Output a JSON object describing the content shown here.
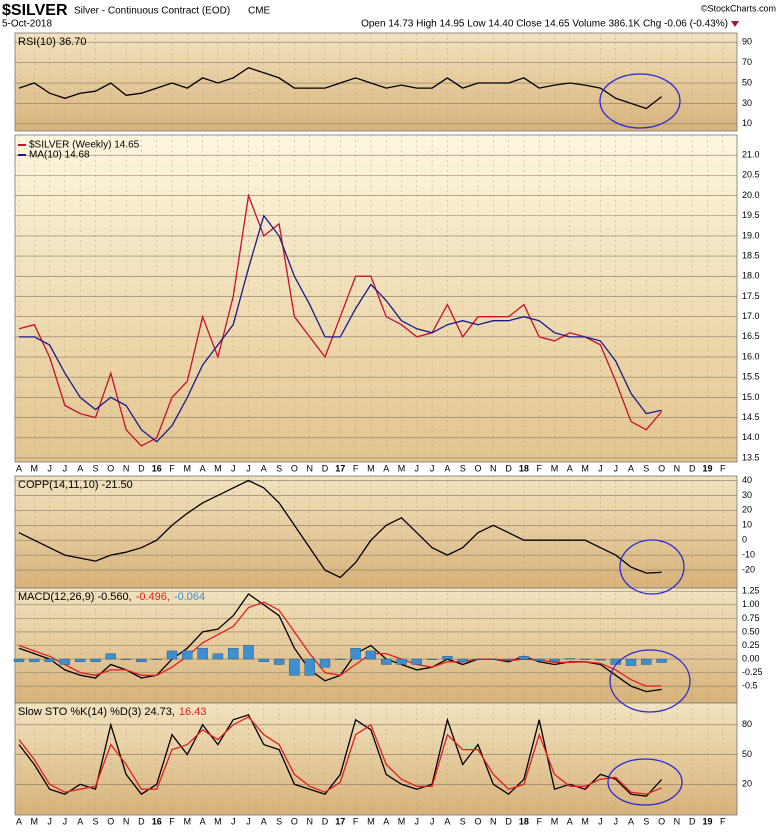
{
  "header": {
    "symbol": "$SILVER",
    "name": "Silver - Continuous Contract (EOD)",
    "exchange": "CME",
    "date": "5-Oct-2018",
    "quote": "Open 14.73  High 14.95  Low 14.40  Close 14.65  Volume 386.1K  Chg -0.06 (-0.43%)",
    "credit": "©StockCharts.com"
  },
  "chart_data": [
    {
      "type": "line",
      "ylim": [
        3,
        99
      ],
      "yticks": [
        10,
        30,
        50,
        70,
        90
      ],
      "grid": true,
      "legend_layout": "inline",
      "series": [
        {
          "name": "RSI(10) 36.70",
          "color": "#000000",
          "values": [
            45,
            50,
            40,
            35,
            40,
            42,
            50,
            38,
            40,
            45,
            50,
            45,
            55,
            50,
            55,
            65,
            60,
            55,
            45,
            45,
            45,
            50,
            55,
            50,
            45,
            48,
            45,
            45,
            55,
            45,
            50,
            50,
            50,
            55,
            45,
            48,
            50,
            48,
            45,
            35,
            30,
            25,
            36.7,
            null,
            null,
            null,
            null
          ]
        }
      ]
    },
    {
      "type": "line",
      "ylim": [
        13.4,
        21.5
      ],
      "grid": true,
      "legend_layout": "stacked",
      "yticks": [
        13.5,
        {
          "value": 14,
          "label": "14.0"
        },
        14.5,
        {
          "value": 15,
          "label": "15.0"
        },
        15.5,
        {
          "value": 16,
          "label": "16.0"
        },
        16.5,
        {
          "value": 17,
          "label": "17.0"
        },
        17.5,
        {
          "value": 18,
          "label": "18.0"
        },
        18.5,
        {
          "value": 19,
          "label": "19.0"
        },
        19.5,
        {
          "value": 20,
          "label": "20.0"
        },
        20.5,
        {
          "value": 21,
          "label": "21.0"
        }
      ],
      "categories": [
        "A",
        "M",
        "J",
        "J",
        "A",
        "S",
        "O",
        "N",
        "D",
        "16",
        "F",
        "M",
        "A",
        "M",
        "J",
        "J",
        "A",
        "S",
        "O",
        "N",
        "D",
        "17",
        "F",
        "M",
        "A",
        "M",
        "J",
        "J",
        "A",
        "S",
        "O",
        "N",
        "D",
        "18",
        "F",
        "M",
        "A",
        "M",
        "J",
        "J",
        "A",
        "S",
        "O",
        "N",
        "D",
        "19",
        "F"
      ],
      "series": [
        {
          "name": "$SILVER (Weekly) 14.65",
          "color": "#c8102e",
          "values": [
            16.7,
            16.8,
            16.0,
            14.8,
            14.6,
            14.5,
            15.6,
            14.2,
            13.8,
            14.0,
            15.0,
            15.4,
            17.0,
            16.0,
            17.5,
            20.0,
            19.0,
            19.3,
            17.0,
            16.5,
            16.0,
            17.0,
            18.0,
            18.0,
            17.0,
            16.8,
            16.5,
            16.6,
            17.3,
            16.5,
            17.0,
            17.0,
            17.0,
            17.3,
            16.5,
            16.4,
            16.6,
            16.5,
            16.3,
            15.4,
            14.4,
            14.2,
            14.65,
            null,
            null,
            null,
            null
          ]
        },
        {
          "name": "MA(10) 14.68",
          "color": "#1a1a8c",
          "values": [
            16.5,
            16.5,
            16.3,
            15.6,
            15.0,
            14.7,
            15.0,
            14.8,
            14.2,
            13.9,
            14.3,
            15.0,
            15.8,
            16.3,
            16.8,
            18.2,
            19.5,
            19.0,
            18.0,
            17.3,
            16.5,
            16.5,
            17.2,
            17.8,
            17.4,
            16.9,
            16.7,
            16.6,
            16.8,
            16.9,
            16.8,
            16.9,
            16.9,
            17.0,
            16.9,
            16.6,
            16.5,
            16.5,
            16.4,
            15.9,
            15.1,
            14.6,
            14.68,
            null,
            null,
            null,
            null
          ]
        }
      ]
    },
    {
      "type": "line",
      "ylim": [
        -32,
        43
      ],
      "yticks": [
        -20,
        -10,
        0,
        10,
        20,
        30,
        40
      ],
      "grid": true,
      "legend_layout": "inline",
      "series": [
        {
          "name": "COPP(14,11,10) -21.50",
          "color": "#000000",
          "values": [
            5,
            0,
            -5,
            -10,
            -12,
            -14,
            -10,
            -8,
            -5,
            0,
            10,
            18,
            25,
            30,
            35,
            40,
            35,
            25,
            10,
            -5,
            -20,
            -25,
            -15,
            0,
            10,
            15,
            5,
            -5,
            -10,
            -5,
            5,
            10,
            5,
            0,
            0,
            0,
            0,
            0,
            -5,
            -10,
            -18,
            -22,
            -21.5,
            null,
            null,
            null,
            null
          ]
        }
      ]
    },
    {
      "type": "line",
      "ylim": [
        -0.81,
        1.31
      ],
      "grid": true,
      "legend_layout": "inline",
      "yticks": [
        -0.5,
        -0.25,
        {
          "value": 0,
          "label": "0.00"
        },
        0.25,
        {
          "value": 0.5,
          "label": "0.50"
        },
        0.75,
        {
          "value": 1,
          "label": "1.00"
        },
        1.25
      ],
      "series": [
        {
          "name": "MACD(12,26,9) -0.560,",
          "color": "#000000",
          "values": [
            0.2,
            0.1,
            0.0,
            -0.2,
            -0.3,
            -0.35,
            -0.1,
            -0.2,
            -0.35,
            -0.3,
            0.0,
            0.2,
            0.5,
            0.55,
            0.8,
            1.2,
            1.0,
            0.8,
            0.2,
            -0.2,
            -0.4,
            -0.3,
            0.1,
            0.25,
            0.0,
            -0.1,
            -0.2,
            -0.15,
            0.0,
            -0.1,
            0.0,
            0.0,
            -0.05,
            0.05,
            -0.05,
            -0.1,
            -0.05,
            -0.05,
            -0.1,
            -0.3,
            -0.5,
            -0.6,
            -0.56,
            null,
            null,
            null,
            null
          ]
        },
        {
          "name": "-0.496,",
          "color": "#e02020",
          "values": [
            0.25,
            0.15,
            0.05,
            -0.1,
            -0.25,
            -0.3,
            -0.2,
            -0.2,
            -0.3,
            -0.3,
            -0.15,
            0.05,
            0.3,
            0.45,
            0.6,
            0.95,
            1.05,
            0.9,
            0.5,
            0.1,
            -0.25,
            -0.3,
            -0.1,
            0.1,
            0.1,
            0.0,
            -0.1,
            -0.15,
            -0.05,
            -0.05,
            0.0,
            0.0,
            -0.03,
            0.0,
            -0.02,
            -0.06,
            -0.06,
            -0.05,
            -0.08,
            -0.2,
            -0.38,
            -0.5,
            -0.496,
            null,
            null,
            null,
            null
          ]
        },
        {
          "name": "-0.064",
          "color": "#3d8fd0",
          "type": "bar",
          "values": [
            -0.05,
            -0.05,
            -0.05,
            -0.1,
            -0.05,
            -0.05,
            0.1,
            0,
            -0.05,
            0,
            0.15,
            0.15,
            0.2,
            0.1,
            0.2,
            0.25,
            -0.05,
            -0.1,
            -0.3,
            -0.3,
            -0.15,
            0,
            0.2,
            0.15,
            -0.1,
            -0.1,
            -0.1,
            0,
            0.05,
            -0.05,
            0,
            0,
            -0.02,
            0.05,
            -0.03,
            -0.04,
            0.01,
            0,
            -0.02,
            -0.1,
            -0.12,
            -0.1,
            -0.064,
            null,
            null,
            null,
            null
          ]
        }
      ]
    },
    {
      "type": "line",
      "ylim": [
        -11,
        102
      ],
      "yticks": [
        20,
        50,
        80
      ],
      "grid": true,
      "legend_layout": "inline",
      "categories": [
        "A",
        "M",
        "J",
        "J",
        "A",
        "S",
        "O",
        "N",
        "D",
        "16",
        "F",
        "M",
        "A",
        "M",
        "J",
        "J",
        "A",
        "S",
        "O",
        "N",
        "D",
        "17",
        "F",
        "M",
        "A",
        "M",
        "J",
        "J",
        "A",
        "S",
        "O",
        "N",
        "D",
        "18",
        "F",
        "M",
        "A",
        "M",
        "J",
        "J",
        "A",
        "S",
        "O",
        "N",
        "D",
        "19",
        "F"
      ],
      "series": [
        {
          "name": "Slow STO %K(14) %D(3) 24.73,",
          "color": "#000000",
          "values": [
            60,
            40,
            15,
            10,
            20,
            15,
            80,
            30,
            10,
            20,
            70,
            50,
            80,
            60,
            85,
            90,
            60,
            55,
            20,
            15,
            10,
            30,
            85,
            75,
            30,
            20,
            15,
            20,
            85,
            40,
            60,
            20,
            10,
            25,
            85,
            15,
            20,
            15,
            30,
            25,
            10,
            8,
            24.73,
            null,
            null,
            null,
            null
          ]
        },
        {
          "name": "16.43",
          "color": "#e02020",
          "values": [
            65,
            45,
            20,
            12,
            15,
            18,
            60,
            40,
            15,
            15,
            55,
            60,
            75,
            65,
            80,
            88,
            70,
            60,
            30,
            18,
            12,
            22,
            70,
            80,
            40,
            25,
            18,
            18,
            70,
            55,
            55,
            30,
            15,
            20,
            70,
            30,
            18,
            18,
            25,
            27,
            12,
            10,
            16.43,
            null,
            null,
            null,
            null
          ]
        }
      ]
    }
  ]
}
